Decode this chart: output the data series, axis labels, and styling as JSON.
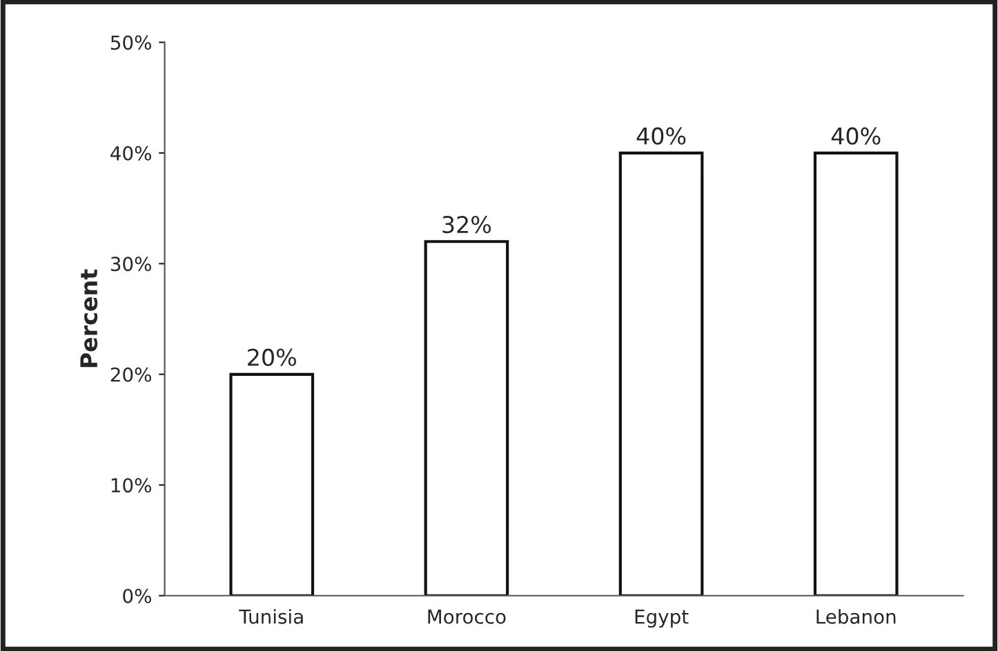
{
  "chart_data": {
    "type": "bar",
    "ylabel": "Percent",
    "categories": [
      "Tunisia",
      "Morocco",
      "Egypt",
      "Lebanon"
    ],
    "values": [
      20,
      32,
      40,
      40
    ],
    "value_labels": [
      "20%",
      "32%",
      "40%",
      "40%"
    ],
    "color": "#ffffff",
    "ylim": [
      0,
      50
    ],
    "yticks": [
      {
        "value": 0,
        "label": "0%"
      },
      {
        "value": 10,
        "label": "10%"
      },
      {
        "value": 20,
        "label": "20%"
      },
      {
        "value": 30,
        "label": "30%"
      },
      {
        "value": 40,
        "label": "40%"
      },
      {
        "value": 50,
        "label": "50%"
      }
    ],
    "grid": false
  }
}
